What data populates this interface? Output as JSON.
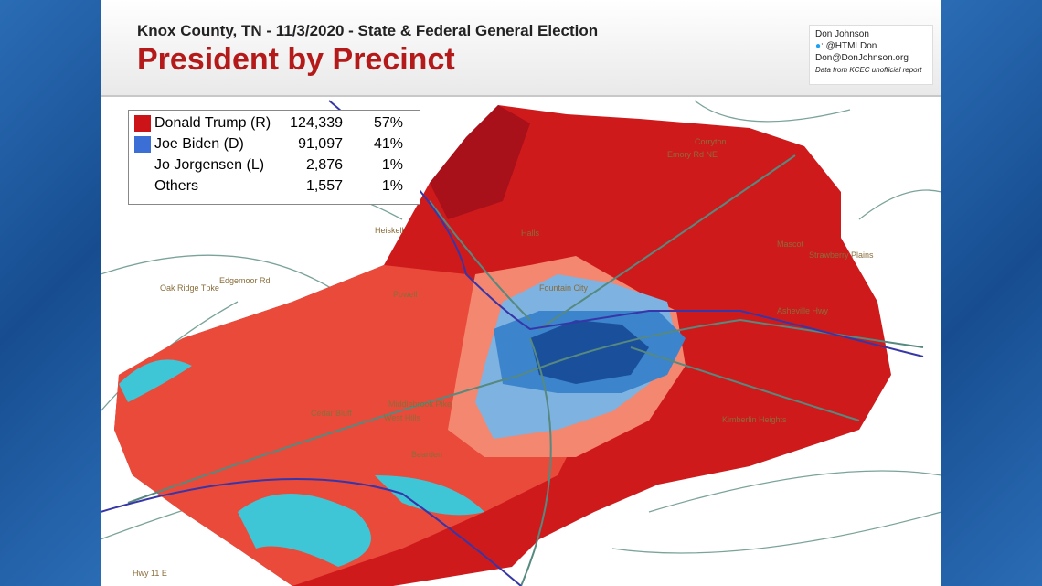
{
  "header": {
    "title": "Knox County, TN - 11/3/2020 - State & Federal General Election",
    "subtitle": "President by Precinct"
  },
  "credit": {
    "name": "Don Johnson",
    "twitter": ": @HTMLDon",
    "email": "Don@DonJohnson.org",
    "note": "Data from KCEC unofficial report"
  },
  "legend": {
    "rows": [
      {
        "name": "Donald Trump (R)",
        "votes": "124,339",
        "percent": "57%",
        "color": "#cc1418"
      },
      {
        "name": "Joe Biden (D)",
        "votes": "91,097",
        "percent": "41%",
        "color": "#3c6fd6"
      },
      {
        "name": "Jo Jorgensen (L)",
        "votes": "2,876",
        "percent": "1%",
        "color": null
      },
      {
        "name": "Others",
        "votes": "1,557",
        "percent": "1%",
        "color": null
      }
    ]
  },
  "places": [
    "Heiskell",
    "Halls",
    "Corryton",
    "Powell",
    "Mascot",
    "Strawberry Plains",
    "Fountain City",
    "Kimberlin Heights",
    "Cedar Bluff",
    "West Hills",
    "Bearden",
    "Oak Ridge Tpke",
    "Edgemoor Rd",
    "Middlebrook Pike",
    "Asheville Hwy",
    "Emory Rd NE",
    "Hwy 11 E"
  ]
}
